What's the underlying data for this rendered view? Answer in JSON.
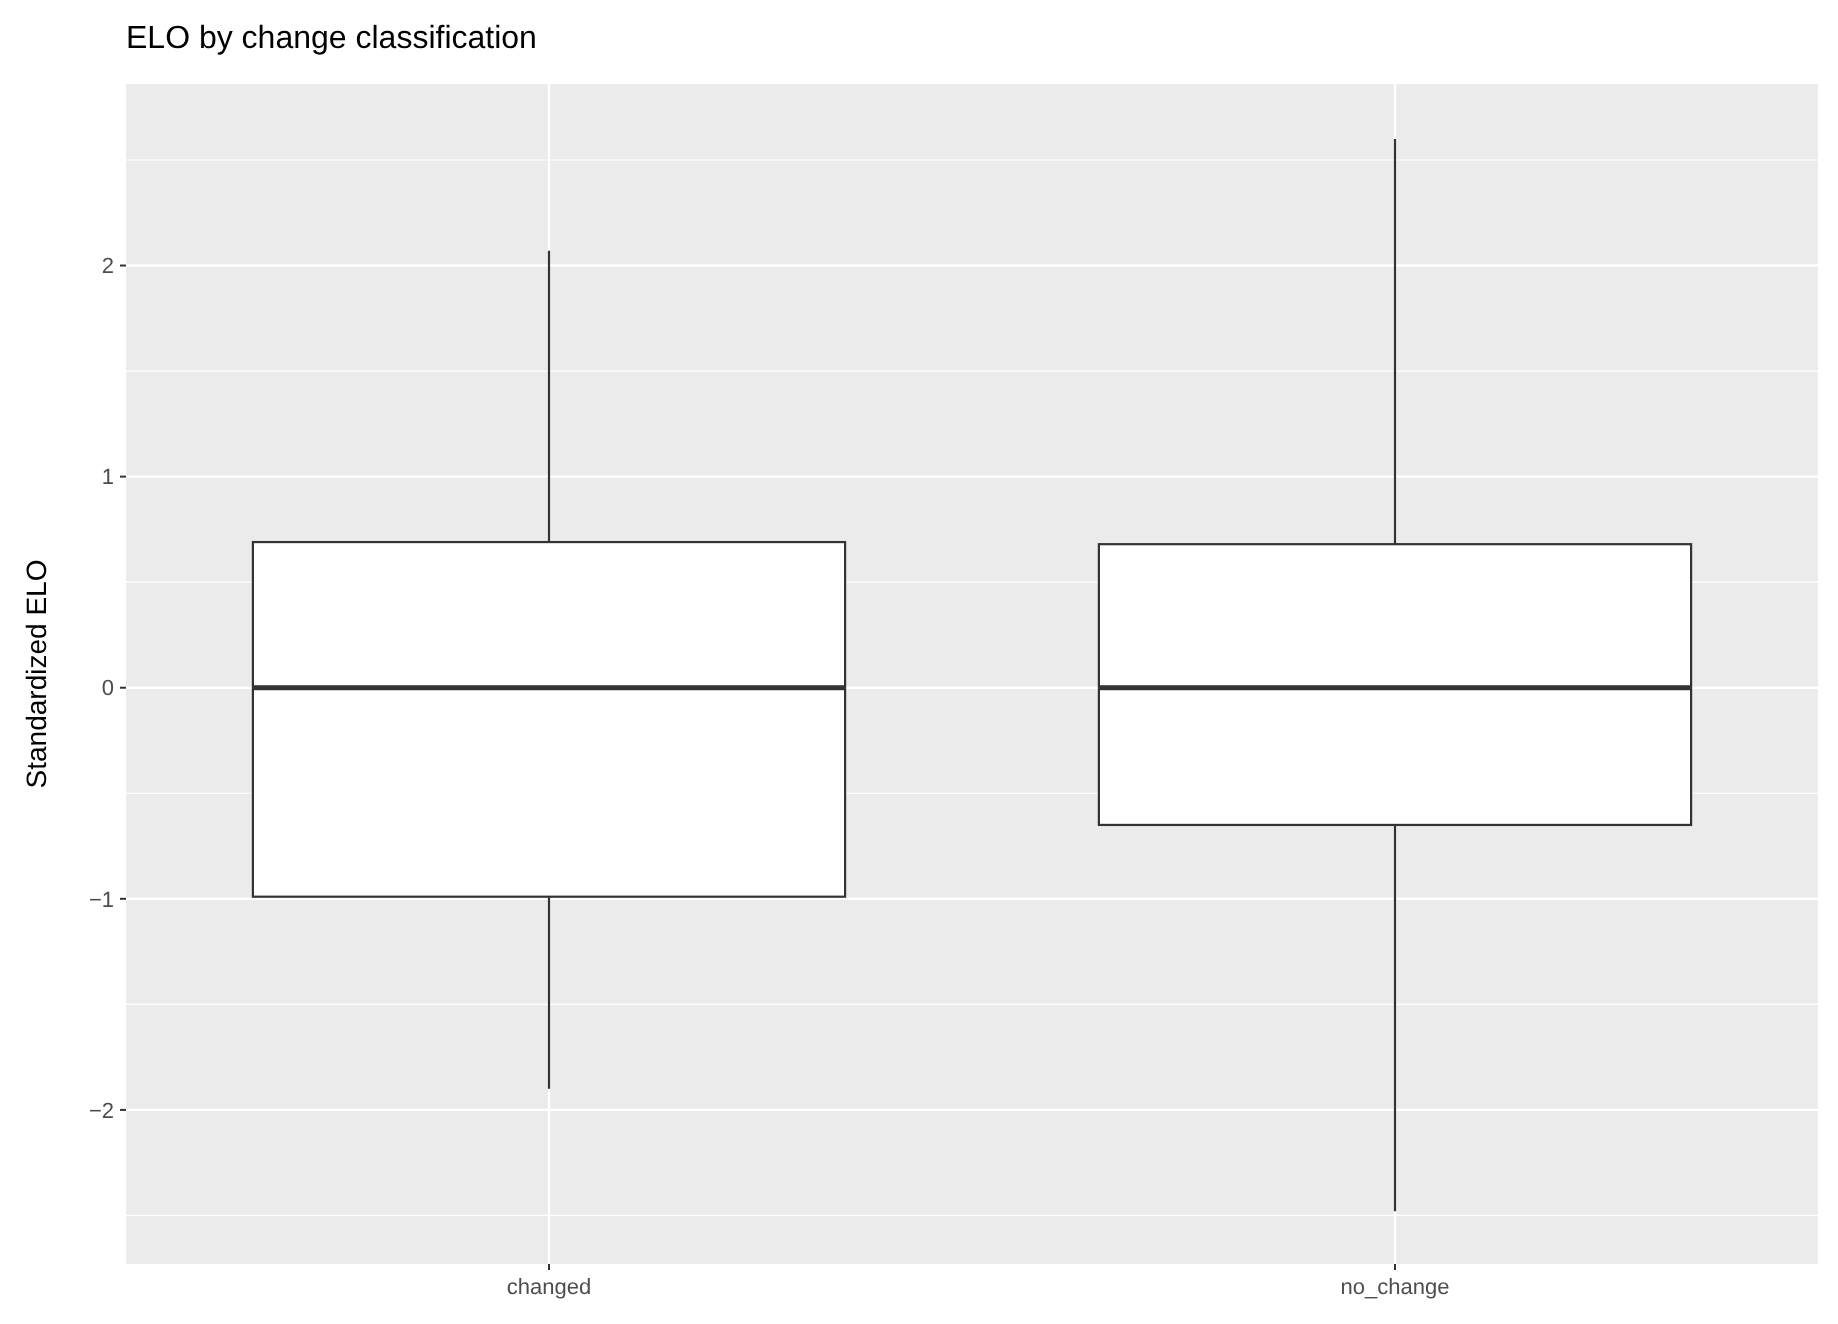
{
  "chart_data": {
    "type": "box",
    "title": "ELO by change classification",
    "ylabel": "Standardized ELO",
    "categories": [
      "changed",
      "no_change"
    ],
    "boxes": [
      {
        "low": -1.9,
        "q1": -0.99,
        "median": 0,
        "q3": 0.69,
        "high": 2.07
      },
      {
        "low": -2.48,
        "q1": -0.65,
        "median": 0,
        "q3": 0.68,
        "high": 2.6
      }
    ],
    "ylim": [
      -2.73,
      2.86
    ],
    "yticks": [
      {
        "value": -2,
        "label": "−2"
      },
      {
        "value": -1,
        "label": "−1"
      },
      0,
      1,
      2
    ],
    "grid": true
  }
}
